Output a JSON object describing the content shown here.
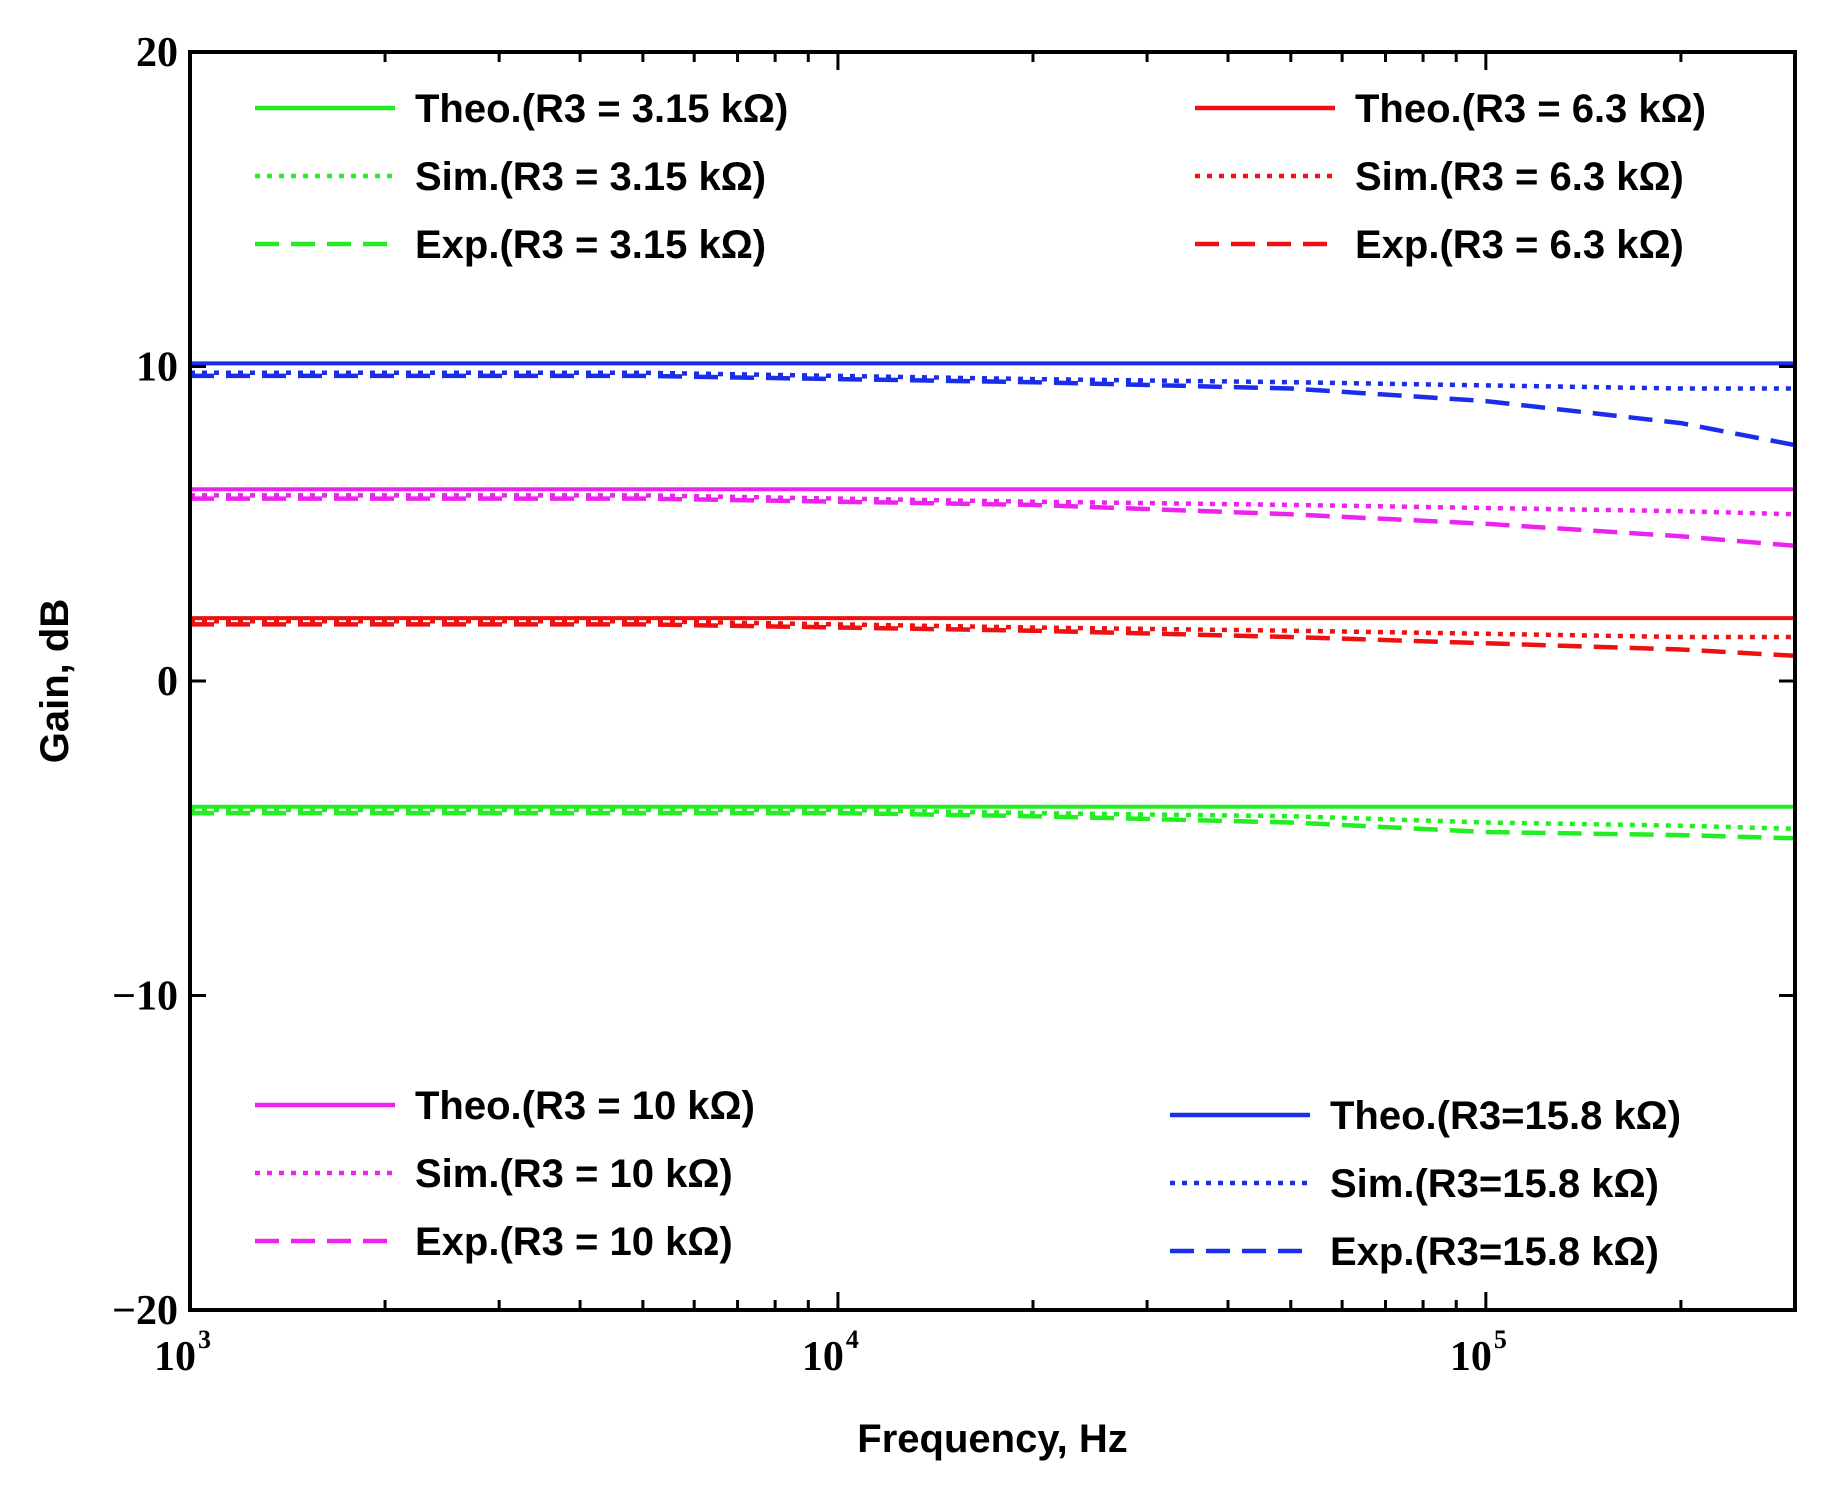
{
  "chart_data": {
    "type": "line",
    "title": "",
    "xlabel": "Frequency, Hz",
    "ylabel": "Gain, dB",
    "xscale": "log",
    "xlim": [
      1000,
      300000
    ],
    "ylim": [
      -20,
      20
    ],
    "xticks": [
      {
        "value": 1000,
        "base": "10",
        "exp": "3"
      },
      {
        "value": 10000,
        "base": "10",
        "exp": "4"
      },
      {
        "value": 100000,
        "base": "10",
        "exp": "5"
      }
    ],
    "yticks": [
      {
        "value": 20,
        "label": "20"
      },
      {
        "value": 10,
        "label": "10"
      },
      {
        "value": 0,
        "label": "0"
      },
      {
        "value": -10,
        "label": "−10"
      },
      {
        "value": -20,
        "label": "−20"
      }
    ],
    "x": [
      1000,
      2000,
      5000,
      10000,
      20000,
      50000,
      100000,
      200000,
      300000
    ],
    "series": [
      {
        "name": "Theo.(R3 = 3.15 kΩ)",
        "color": "#22ee22",
        "style": "solid",
        "values": [
          -4.0,
          -4.0,
          -4.0,
          -4.0,
          -4.0,
          -4.0,
          -4.0,
          -4.0,
          -4.0
        ]
      },
      {
        "name": "Sim.(R3 = 3.15 kΩ)",
        "color": "#22ee22",
        "style": "dotted",
        "values": [
          -4.1,
          -4.1,
          -4.1,
          -4.1,
          -4.2,
          -4.3,
          -4.5,
          -4.6,
          -4.7
        ]
      },
      {
        "name": "Exp.(R3 = 3.15 kΩ)",
        "color": "#22ee22",
        "style": "dashed",
        "values": [
          -4.2,
          -4.2,
          -4.2,
          -4.2,
          -4.3,
          -4.5,
          -4.8,
          -4.9,
          -5.0
        ]
      },
      {
        "name": "Theo.(R3 = 6.3 kΩ)",
        "color": "#ee1111",
        "style": "solid",
        "values": [
          2.0,
          2.0,
          2.0,
          2.0,
          2.0,
          2.0,
          2.0,
          2.0,
          2.0
        ]
      },
      {
        "name": "Sim.(R3 = 6.3 kΩ)",
        "color": "#ee1111",
        "style": "dotted",
        "values": [
          1.9,
          1.9,
          1.9,
          1.8,
          1.7,
          1.6,
          1.5,
          1.4,
          1.4
        ]
      },
      {
        "name": "Exp.(R3 = 6.3 kΩ)",
        "color": "#ee1111",
        "style": "dashed",
        "values": [
          1.8,
          1.8,
          1.8,
          1.7,
          1.6,
          1.4,
          1.2,
          1.0,
          0.8
        ]
      },
      {
        "name": "Theo.(R3 = 10 kΩ)",
        "color": "#ee22ee",
        "style": "solid",
        "values": [
          6.1,
          6.1,
          6.1,
          6.1,
          6.1,
          6.1,
          6.1,
          6.1,
          6.1
        ]
      },
      {
        "name": "Sim.(R3 = 10 kΩ)",
        "color": "#ee22ee",
        "style": "dotted",
        "values": [
          5.9,
          5.9,
          5.9,
          5.8,
          5.7,
          5.6,
          5.5,
          5.4,
          5.3
        ]
      },
      {
        "name": "Exp.(R3 = 10 kΩ)",
        "color": "#ee22ee",
        "style": "dashed",
        "values": [
          5.8,
          5.8,
          5.8,
          5.7,
          5.6,
          5.3,
          5.0,
          4.6,
          4.3
        ]
      },
      {
        "name": "Theo.(R3=15.8 kΩ)",
        "color": "#1a2de8",
        "style": "solid",
        "values": [
          10.1,
          10.1,
          10.1,
          10.1,
          10.1,
          10.1,
          10.1,
          10.1,
          10.1
        ]
      },
      {
        "name": "Sim.(R3=15.8 kΩ)",
        "color": "#1a2de8",
        "style": "dotted",
        "values": [
          9.8,
          9.8,
          9.8,
          9.7,
          9.6,
          9.5,
          9.4,
          9.3,
          9.3
        ]
      },
      {
        "name": "Exp.(R3=15.8 kΩ)",
        "color": "#1a2de8",
        "style": "dashed",
        "values": [
          9.7,
          9.7,
          9.7,
          9.6,
          9.5,
          9.3,
          8.9,
          8.2,
          7.5
        ]
      }
    ],
    "legends": [
      {
        "position": "top-left",
        "entries": [
          0,
          1,
          2
        ]
      },
      {
        "position": "top-right",
        "entries": [
          3,
          4,
          5
        ]
      },
      {
        "position": "bottom-left",
        "entries": [
          6,
          7,
          8
        ]
      },
      {
        "position": "bottom-right",
        "entries": [
          9,
          10,
          11
        ]
      }
    ],
    "grid": false
  }
}
